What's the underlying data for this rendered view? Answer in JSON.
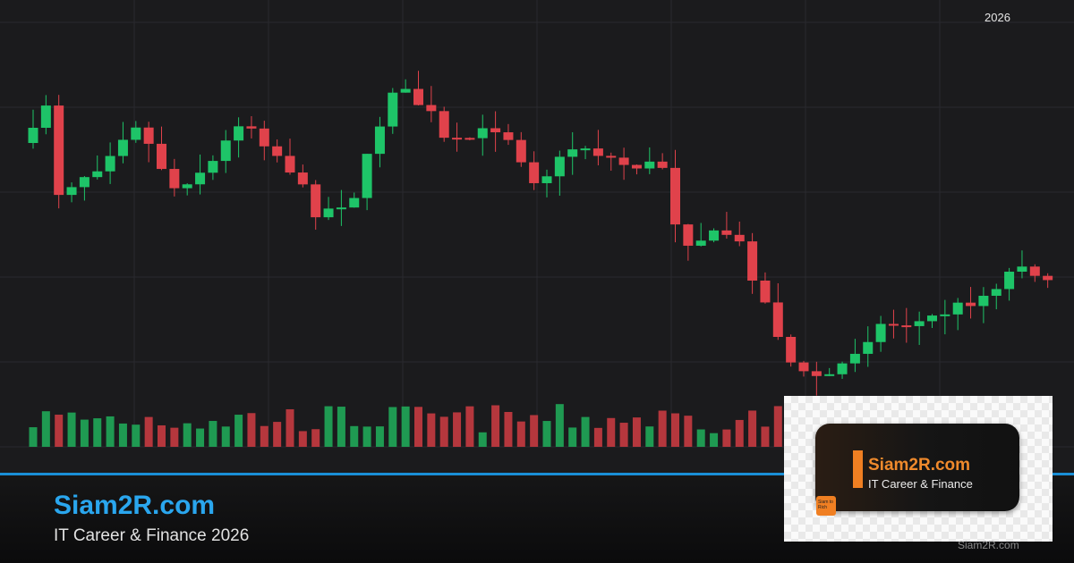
{
  "header": {
    "year": "2026"
  },
  "brand": {
    "title": "Siam2R.com",
    "subtitle": "IT Career & Finance 2026"
  },
  "logo_card": {
    "title": "Siam2R.com",
    "subtitle": "IT Career & Finance",
    "icon_text": "Siam to Rich",
    "watermark": "Siam2R.com"
  }
}
